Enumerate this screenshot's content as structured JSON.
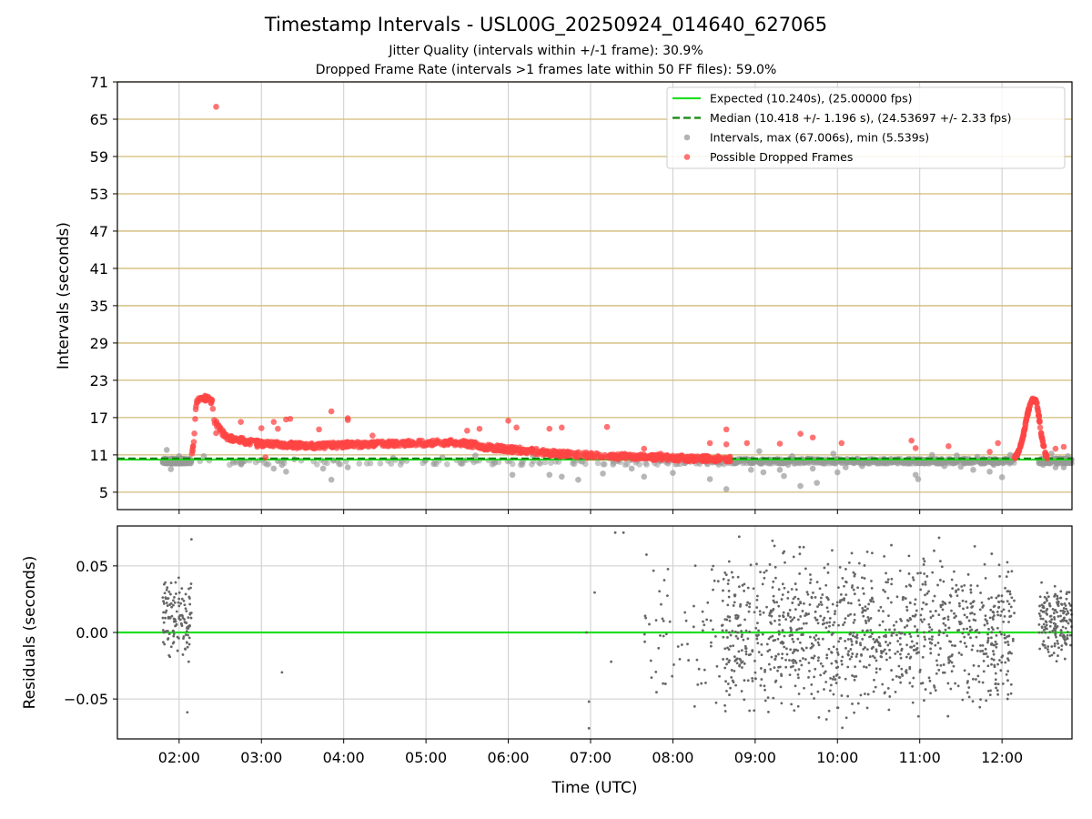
{
  "chart_data": [
    {
      "type": "scatter",
      "title": "Timestamp Intervals - USL00G_20250924_014640_627065",
      "subtitle_lines": [
        "Jitter Quality (intervals within +/-1 frame): 30.9%",
        "Dropped Frame Rate (intervals >1 frames late within 50 FF files): 59.0%"
      ],
      "ylabel": "Intervals (seconds)",
      "xlabel": "Time (UTC)",
      "x_units": "hours UTC",
      "xlim": [
        1.25,
        12.85
      ],
      "ylim": [
        2.2,
        71
      ],
      "yticks": [
        5,
        11,
        17,
        23,
        29,
        35,
        41,
        47,
        53,
        59,
        65,
        71
      ],
      "xticks": [
        {
          "value": 2,
          "label": "02:00"
        },
        {
          "value": 3,
          "label": "03:00"
        },
        {
          "value": 4,
          "label": "04:00"
        },
        {
          "value": 5,
          "label": "05:00"
        },
        {
          "value": 6,
          "label": "06:00"
        },
        {
          "value": 7,
          "label": "07:00"
        },
        {
          "value": 8,
          "label": "08:00"
        },
        {
          "value": 9,
          "label": "09:00"
        },
        {
          "value": 10,
          "label": "10:00"
        },
        {
          "value": 11,
          "label": "11:00"
        },
        {
          "value": 12,
          "label": "12:00"
        }
      ],
      "grid": "horizontal gold lines, vertical gray lines",
      "legend_position": "top-right",
      "legend": [
        {
          "label": "Expected (10.240s), (25.00000 fps)",
          "style": "solid",
          "color": "#22dd22"
        },
        {
          "label": "Median (10.418 +/- 1.196 s), (24.53697 +/- 2.33 fps)",
          "style": "dashed",
          "color": "#118811"
        },
        {
          "label": "Intervals, max (67.006s), min (5.539s)",
          "style": "marker",
          "color": "#999999"
        },
        {
          "label": "Possible Dropped Frames",
          "style": "marker",
          "color": "#ff4444"
        }
      ],
      "series": [
        {
          "name": "Expected",
          "type": "hline",
          "y": 10.24,
          "color": "#22dd22"
        },
        {
          "name": "Median",
          "type": "hline",
          "y": 10.418,
          "color": "#118811",
          "dashed": true
        },
        {
          "name": "Intervals",
          "color": "#999999",
          "points": [
            [
              1.85,
              11.8
            ],
            [
              1.9,
              8.7
            ],
            [
              2.0,
              10.8
            ],
            [
              2.05,
              9.8
            ],
            [
              2.3,
              10.8
            ],
            [
              2.75,
              9.7
            ],
            [
              3.15,
              8.8
            ],
            [
              3.2,
              10.0
            ],
            [
              3.25,
              9.4
            ],
            [
              3.3,
              8.3
            ],
            [
              3.4,
              10.3
            ],
            [
              3.75,
              8.8
            ],
            [
              3.85,
              7.0
            ],
            [
              4.05,
              9.0
            ],
            [
              4.6,
              10.5
            ],
            [
              5.2,
              10.6
            ],
            [
              5.6,
              10.9
            ],
            [
              6.05,
              7.8
            ],
            [
              6.3,
              10.9
            ],
            [
              6.5,
              7.8
            ],
            [
              6.65,
              7.5
            ],
            [
              6.85,
              7.0
            ],
            [
              7.15,
              8.0
            ],
            [
              7.5,
              8.8
            ],
            [
              7.65,
              7.5
            ],
            [
              7.85,
              10.0
            ],
            [
              8.0,
              8.1
            ],
            [
              8.15,
              9.7
            ],
            [
              8.3,
              10.1
            ],
            [
              8.45,
              7.1
            ],
            [
              8.65,
              5.5
            ],
            [
              8.9,
              10.3
            ],
            [
              8.95,
              8.6
            ],
            [
              9.05,
              11.6
            ],
            [
              9.1,
              8.2
            ],
            [
              9.3,
              8.6
            ],
            [
              9.35,
              7.6
            ],
            [
              9.4,
              9.4
            ],
            [
              9.45,
              10.8
            ],
            [
              9.55,
              6.0
            ],
            [
              9.7,
              8.8
            ],
            [
              9.75,
              6.5
            ],
            [
              9.85,
              10.1
            ],
            [
              9.95,
              11.2
            ],
            [
              10.0,
              8.2
            ],
            [
              10.1,
              9.0
            ],
            [
              10.3,
              9.2
            ],
            [
              10.55,
              10.1
            ],
            [
              10.7,
              10.3
            ],
            [
              10.95,
              7.8
            ],
            [
              10.98,
              7.1
            ],
            [
              11.15,
              11.0
            ],
            [
              11.3,
              9.2
            ],
            [
              11.45,
              10.9
            ],
            [
              11.5,
              9.1
            ],
            [
              11.65,
              8.6
            ],
            [
              11.7,
              10.7
            ],
            [
              11.85,
              8.3
            ],
            [
              11.9,
              9.4
            ],
            [
              12.0,
              7.4
            ],
            [
              12.1,
              11.0
            ],
            [
              12.5,
              9.4
            ],
            [
              12.6,
              11.2
            ],
            [
              12.65,
              9.0
            ],
            [
              12.7,
              10.4
            ],
            [
              12.75,
              9.0
            ],
            [
              12.8,
              10.8
            ]
          ]
        },
        {
          "name": "Possible Dropped Frames",
          "color": "#ff4444",
          "curve": [
            [
              2.15,
              10.8
            ],
            [
              2.18,
              13
            ],
            [
              2.2,
              18
            ],
            [
              2.22,
              19.8
            ],
            [
              2.25,
              20.2
            ],
            [
              2.35,
              20.1
            ],
            [
              2.4,
              19.5
            ],
            [
              2.43,
              16.5
            ],
            [
              2.5,
              15
            ],
            [
              2.6,
              13.7
            ],
            [
              2.8,
              13.2
            ],
            [
              3.0,
              12.8
            ],
            [
              3.3,
              12.6
            ],
            [
              3.6,
              12.4
            ],
            [
              4.0,
              12.6
            ],
            [
              4.5,
              12.8
            ],
            [
              5.0,
              12.9
            ],
            [
              5.3,
              13.0
            ],
            [
              5.5,
              12.8
            ],
            [
              5.7,
              12.3
            ],
            [
              6.0,
              11.9
            ],
            [
              6.3,
              11.6
            ],
            [
              6.6,
              11.2
            ],
            [
              7.0,
              10.9
            ],
            [
              7.5,
              10.7
            ],
            [
              8.0,
              10.5
            ],
            [
              8.3,
              10.4
            ],
            [
              8.6,
              10.4
            ],
            [
              8.7,
              10.3
            ]
          ],
          "curve2": [
            [
              12.15,
              10.5
            ],
            [
              12.2,
              11.5
            ],
            [
              12.25,
              13.5
            ],
            [
              12.3,
              17
            ],
            [
              12.35,
              19.5
            ],
            [
              12.38,
              20.0
            ],
            [
              12.42,
              19.5
            ],
            [
              12.45,
              17
            ],
            [
              12.48,
              14
            ],
            [
              12.52,
              11.5
            ],
            [
              12.55,
              10.4
            ]
          ],
          "points": [
            [
              2.45,
              67.0
            ],
            [
              2.45,
              14.5
            ],
            [
              2.75,
              16.3
            ],
            [
              2.95,
              12.3
            ],
            [
              3.0,
              15.3
            ],
            [
              3.05,
              10.6
            ],
            [
              3.15,
              16.3
            ],
            [
              3.2,
              15.2
            ],
            [
              3.3,
              16.7
            ],
            [
              3.35,
              16.8
            ],
            [
              3.7,
              15.1
            ],
            [
              3.85,
              18.0
            ],
            [
              4.05,
              16.6
            ],
            [
              4.05,
              16.9
            ],
            [
              4.35,
              14.1
            ],
            [
              5.5,
              14.9
            ],
            [
              5.65,
              15.2
            ],
            [
              6.0,
              16.5
            ],
            [
              6.1,
              15.4
            ],
            [
              6.5,
              15.2
            ],
            [
              6.65,
              15.4
            ],
            [
              7.2,
              15.5
            ],
            [
              7.65,
              12.0
            ],
            [
              7.85,
              11.2
            ],
            [
              8.45,
              12.9
            ],
            [
              8.65,
              12.7
            ],
            [
              8.65,
              15.1
            ],
            [
              8.9,
              12.9
            ],
            [
              9.3,
              12.8
            ],
            [
              9.55,
              14.4
            ],
            [
              9.7,
              13.8
            ],
            [
              10.05,
              12.9
            ],
            [
              10.9,
              13.3
            ],
            [
              10.95,
              12.1
            ],
            [
              11.35,
              12.4
            ],
            [
              11.85,
              11.5
            ],
            [
              11.95,
              12.9
            ],
            [
              12.65,
              12.0
            ],
            [
              12.75,
              12.3
            ]
          ]
        }
      ]
    },
    {
      "type": "scatter",
      "ylabel": "Residuals (seconds)",
      "xlabel": "Time (UTC)",
      "xlim": [
        1.25,
        12.85
      ],
      "ylim": [
        -0.08,
        0.08
      ],
      "yticks": [
        {
          "value": 0.05,
          "label": "0.05"
        },
        {
          "value": 0.0,
          "label": "0.00"
        },
        {
          "value": -0.05,
          "label": "−0.05"
        }
      ],
      "xticks": [
        {
          "value": 2,
          "label": "02:00"
        },
        {
          "value": 3,
          "label": "03:00"
        },
        {
          "value": 4,
          "label": "04:00"
        },
        {
          "value": 5,
          "label": "05:00"
        },
        {
          "value": 6,
          "label": "06:00"
        },
        {
          "value": 7,
          "label": "07:00"
        },
        {
          "value": 8,
          "label": "08:00"
        },
        {
          "value": 9,
          "label": "09:00"
        },
        {
          "value": 10,
          "label": "10:00"
        },
        {
          "value": 11,
          "label": "11:00"
        },
        {
          "value": 12,
          "label": "12:00"
        }
      ],
      "grid": "gray lines",
      "series": [
        {
          "name": "Zero",
          "type": "hline",
          "y": 0.0,
          "color": "#22dd22"
        },
        {
          "name": "Residuals",
          "color": "#666666",
          "regions": [
            {
              "x": [
                1.8,
                2.15
              ],
              "y": [
                -0.025,
                0.045
              ],
              "count": 130
            },
            {
              "x": [
                7.65,
                8.2
              ],
              "y": [
                -0.07,
                0.08
              ],
              "count": 35
            },
            {
              "x": [
                8.25,
                8.6
              ],
              "y": [
                -0.07,
                0.08
              ],
              "count": 30
            },
            {
              "x": [
                8.6,
                12.15
              ],
              "y": [
                -0.08,
                0.08
              ],
              "count": 1100
            },
            {
              "x": [
                12.45,
                12.85
              ],
              "y": [
                -0.025,
                0.045
              ],
              "count": 170
            }
          ],
          "points": [
            [
              2.15,
              0.07
            ],
            [
              2.1,
              -0.06
            ],
            [
              3.25,
              -0.03
            ],
            [
              6.95,
              0.0
            ],
            [
              6.98,
              -0.052
            ],
            [
              6.98,
              -0.072
            ],
            [
              7.25,
              -0.022
            ],
            [
              7.05,
              0.03
            ],
            [
              7.3,
              0.075
            ],
            [
              7.4,
              0.075
            ]
          ]
        }
      ]
    }
  ]
}
